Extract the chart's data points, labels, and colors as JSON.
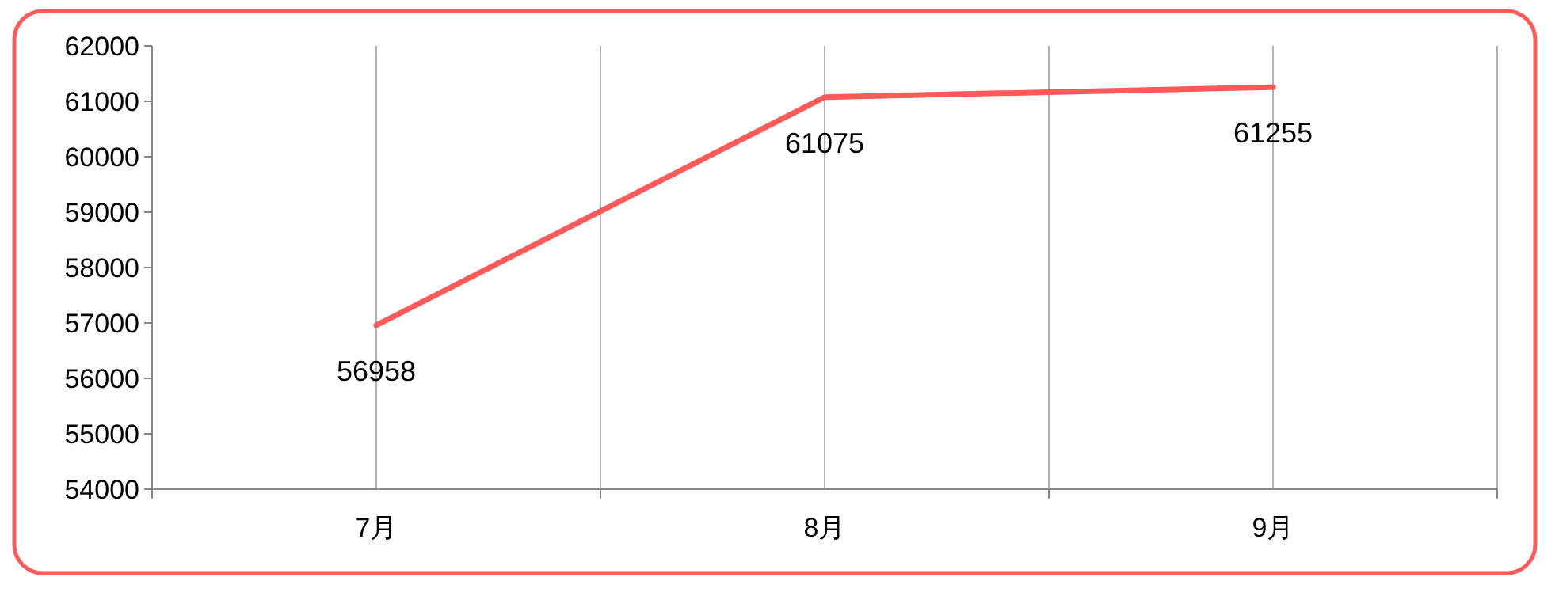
{
  "chart_data": {
    "type": "line",
    "categories": [
      "7月",
      "8月",
      "9月"
    ],
    "series": [
      {
        "color": "#ff5a5a",
        "values": [
          56958,
          61075,
          61255
        ]
      }
    ],
    "ylim": [
      54000,
      62000
    ],
    "yticks": [
      54000,
      55000,
      56000,
      57000,
      58000,
      59000,
      60000,
      61000,
      62000
    ],
    "data_labels": true,
    "grid": "x"
  }
}
